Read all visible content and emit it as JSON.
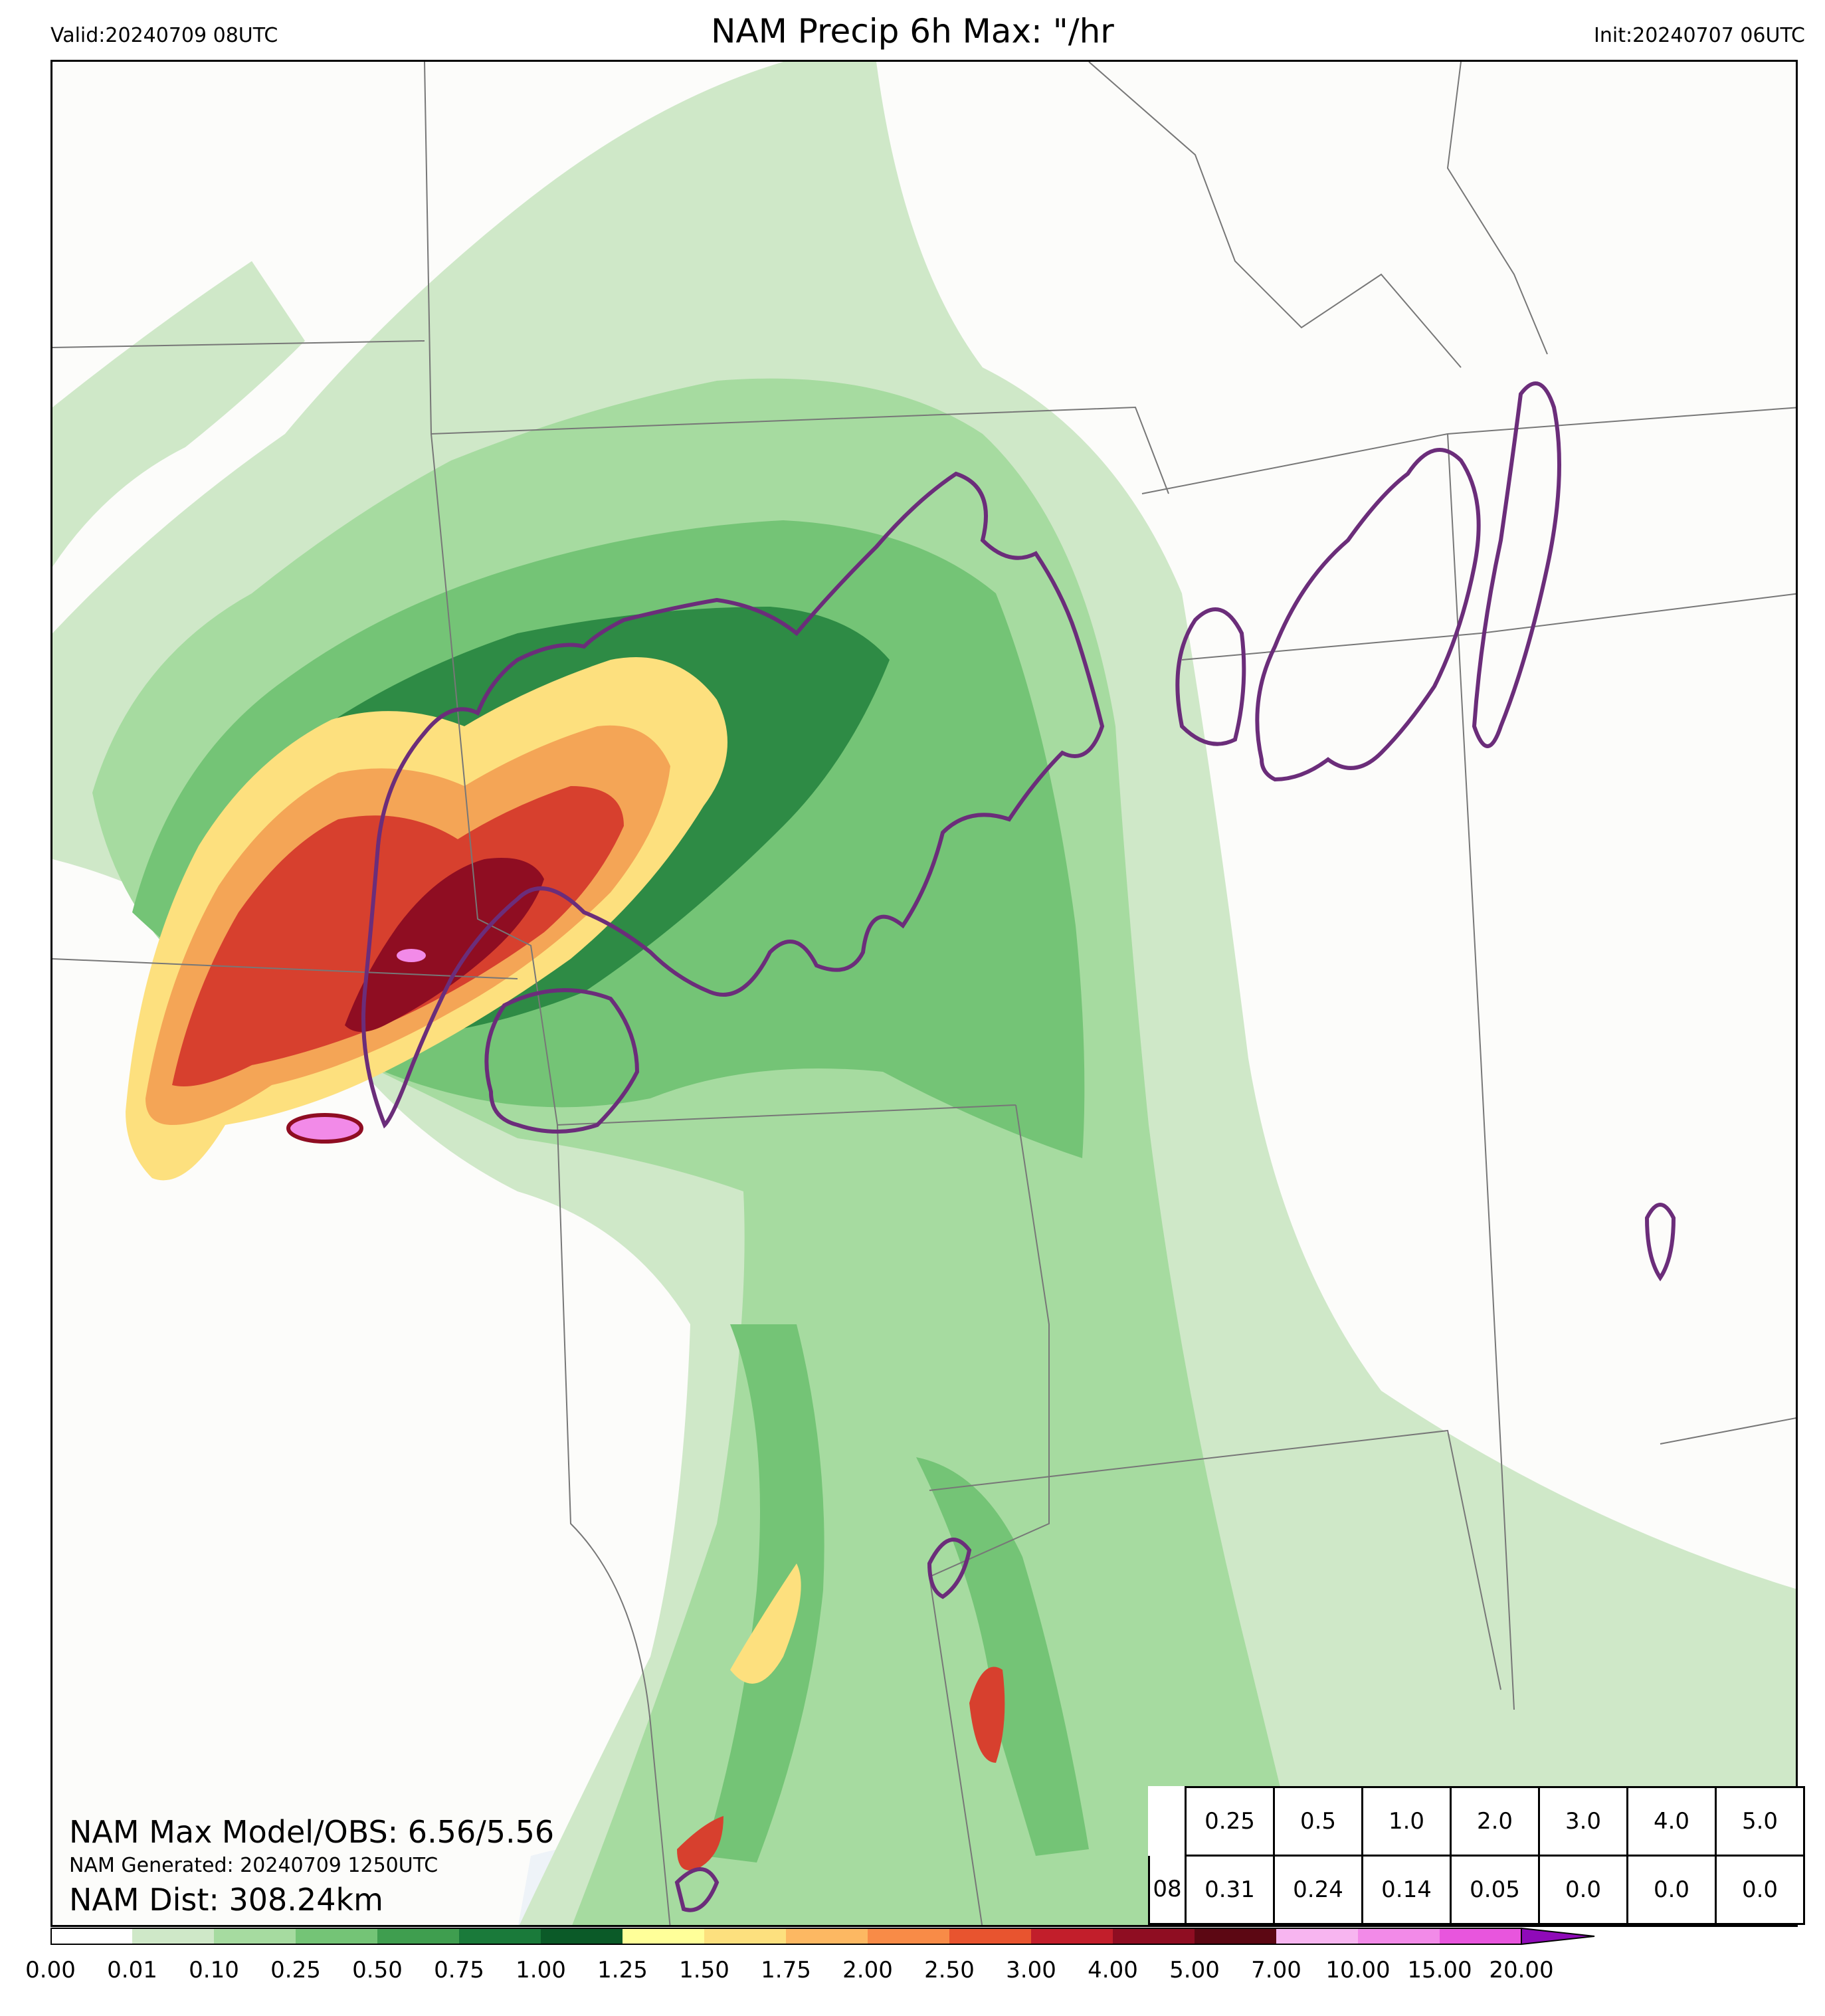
{
  "header": {
    "title": "NAM Precip 6h Max: \"/hr",
    "valid": "Valid:20240709 08UTC",
    "init": "Init:20240707 06UTC"
  },
  "annotations": {
    "max_model_obs": "NAM Max Model/OBS: 6.56/5.56",
    "generated": "NAM Generated: 20240709 1250UTC",
    "distance": "NAM Dist: 308.24km"
  },
  "stats_table": {
    "thresholds": [
      "0.25",
      "0.5",
      "1.0",
      "2.0",
      "3.0",
      "4.0",
      "5.0"
    ],
    "row_label": "08",
    "values": [
      "0.31",
      "0.24",
      "0.14",
      "0.05",
      "0.0",
      "0.0",
      "0.0"
    ]
  },
  "colorbar": {
    "ticks": [
      "0.00",
      "0.01",
      "0.10",
      "0.25",
      "0.50",
      "0.75",
      "1.00",
      "1.25",
      "1.50",
      "1.75",
      "2.00",
      "2.50",
      "3.00",
      "4.00",
      "5.00",
      "7.00",
      "10.00",
      "15.00",
      "20.00"
    ],
    "colors": [
      "#ffffff",
      "#cfe8c8",
      "#a6dba0",
      "#74c476",
      "#3f9e4f",
      "#1a7a3a",
      "#0b5a28",
      "#ffff99",
      "#fde07e",
      "#fdb862",
      "#f88b47",
      "#e8542f",
      "#c21e2b",
      "#8f0d22",
      "#5c0713",
      "#f7b5f0",
      "#f28ae8",
      "#e855dd",
      "#d11ad4",
      "#8f0ab8"
    ]
  },
  "map": {
    "palette": {
      "light_green": "#cfe8c8",
      "mid_green": "#a6dba0",
      "green": "#74c476",
      "dark_green": "#2e8b45",
      "yellow": "#fde07e",
      "orange": "#f4a556",
      "red": "#d7402e",
      "dark_red": "#8f0d22",
      "pink": "#f28ae8",
      "contour_purple": "#6b2d7a",
      "water": "#eef3f8",
      "border_gray": "#777777"
    }
  }
}
